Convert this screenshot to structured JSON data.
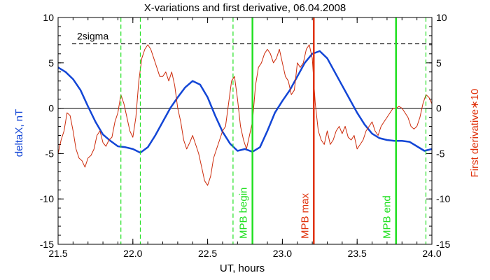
{
  "chart_data": {
    "type": "line",
    "title": "X-variations and first derivative, 06.04.2008",
    "xlabel": "UT, hours",
    "ylabel_left": "deltaX, nT",
    "ylabel_right": "First derivative∗10",
    "xlim": [
      21.5,
      24.0
    ],
    "ylim": [
      -15,
      10
    ],
    "x_ticks": [
      "21.5",
      "22.0",
      "22.5",
      "23.0",
      "23.5",
      "24.0"
    ],
    "y_ticks": [
      "10",
      "5",
      "0",
      "-5",
      "-10",
      "-15"
    ],
    "sigma_label": "2sigma",
    "sigma_level": 7.1,
    "colors": {
      "deltaX": "#1346d6",
      "derivative": "#cc2a0a",
      "green": "#22e022",
      "red": "#e0320c"
    },
    "series": [
      {
        "name": "deltaX",
        "axis": "left",
        "x": [
          21.5,
          21.55,
          21.6,
          21.65,
          21.7,
          21.75,
          21.8,
          21.85,
          21.9,
          21.95,
          22.0,
          22.05,
          22.1,
          22.15,
          22.2,
          22.25,
          22.3,
          22.35,
          22.4,
          22.45,
          22.5,
          22.55,
          22.6,
          22.65,
          22.7,
          22.75,
          22.8,
          22.85,
          22.9,
          22.95,
          23.0,
          23.05,
          23.1,
          23.15,
          23.2,
          23.25,
          23.3,
          23.35,
          23.4,
          23.45,
          23.5,
          23.55,
          23.6,
          23.65,
          23.7,
          23.75,
          23.8,
          23.85,
          23.9,
          23.95,
          24.0
        ],
        "y": [
          4.5,
          4.0,
          3.2,
          2.0,
          0.2,
          -1.5,
          -2.9,
          -3.6,
          -4.2,
          -4.3,
          -4.5,
          -4.9,
          -4.3,
          -3.0,
          -1.5,
          0.0,
          1.2,
          2.3,
          3.0,
          2.6,
          1.2,
          -0.8,
          -2.6,
          -3.9,
          -4.7,
          -4.5,
          -4.8,
          -4.3,
          -2.5,
          -0.5,
          0.8,
          2.0,
          3.5,
          5.0,
          6.0,
          6.3,
          5.5,
          4.0,
          2.5,
          1.0,
          -0.5,
          -1.8,
          -2.8,
          -3.3,
          -3.5,
          -3.6,
          -3.6,
          -3.7,
          -4.2,
          -4.7,
          -4.5
        ]
      },
      {
        "name": "First derivative∗10",
        "axis": "right",
        "x": [
          21.5,
          21.52,
          21.54,
          21.56,
          21.58,
          21.6,
          21.62,
          21.64,
          21.66,
          21.68,
          21.7,
          21.72,
          21.74,
          21.76,
          21.78,
          21.8,
          21.82,
          21.84,
          21.86,
          21.88,
          21.9,
          21.92,
          21.94,
          21.96,
          21.98,
          22.0,
          22.02,
          22.04,
          22.06,
          22.08,
          22.1,
          22.12,
          22.14,
          22.16,
          22.18,
          22.2,
          22.22,
          22.24,
          22.26,
          22.28,
          22.3,
          22.32,
          22.34,
          22.36,
          22.38,
          22.4,
          22.42,
          22.44,
          22.46,
          22.48,
          22.5,
          22.52,
          22.54,
          22.56,
          22.58,
          22.6,
          22.62,
          22.64,
          22.66,
          22.68,
          22.7,
          22.72,
          22.74,
          22.76,
          22.78,
          22.8,
          22.82,
          22.84,
          22.86,
          22.88,
          22.9,
          22.92,
          22.94,
          22.96,
          22.98,
          23.0,
          23.02,
          23.04,
          23.06,
          23.08,
          23.1,
          23.12,
          23.14,
          23.16,
          23.18,
          23.2,
          23.22,
          23.24,
          23.26,
          23.28,
          23.3,
          23.32,
          23.34,
          23.36,
          23.38,
          23.4,
          23.42,
          23.44,
          23.46,
          23.48,
          23.5,
          23.52,
          23.54,
          23.56,
          23.58,
          23.6,
          23.62,
          23.64,
          23.66,
          23.68,
          23.7,
          23.72,
          23.74,
          23.76,
          23.78,
          23.8,
          23.82,
          23.84,
          23.86,
          23.88,
          23.9,
          23.92,
          23.94,
          23.96,
          23.98,
          24.0
        ],
        "y": [
          -5.0,
          -3.5,
          -2.5,
          -0.5,
          -0.8,
          -2.5,
          -4.5,
          -5.5,
          -5.8,
          -6.5,
          -5.5,
          -5.2,
          -4.5,
          -3.0,
          -2.5,
          -3.8,
          -4.2,
          -3.5,
          -3.2,
          -1.5,
          -0.5,
          1.5,
          0.5,
          -1.0,
          -2.5,
          -3.2,
          -1.0,
          3.0,
          5.5,
          6.5,
          7.0,
          6.5,
          5.5,
          4.5,
          3.5,
          3.5,
          4.0,
          3.0,
          4.0,
          2.5,
          0.0,
          -1.5,
          -3.5,
          -4.5,
          -3.8,
          -3.0,
          -4.0,
          -5.0,
          -6.5,
          -8.0,
          -8.5,
          -7.5,
          -5.5,
          -4.5,
          -3.5,
          -2.5,
          -2.0,
          0.5,
          3.0,
          3.5,
          1.0,
          -2.0,
          -3.5,
          -4.5,
          -3.0,
          -1.5,
          2.5,
          4.5,
          5.0,
          6.0,
          6.5,
          6.0,
          5.0,
          5.5,
          6.5,
          5.0,
          3.5,
          3.0,
          1.5,
          2.0,
          5.0,
          4.5,
          5.0,
          6.5,
          7.0,
          5.5,
          0.5,
          -2.5,
          -3.5,
          -4.0,
          -2.5,
          -4.0,
          -3.5,
          -2.5,
          -2.0,
          -2.8,
          -2.0,
          -3.2,
          -3.5,
          -3.0,
          -4.5,
          -4.0,
          -3.5,
          -2.5,
          -2.0,
          -1.5,
          -2.5,
          -3.0,
          -2.0,
          -1.5,
          -1.0,
          -0.5,
          0.0,
          0.0,
          0.2,
          0.0,
          -0.5,
          -1.0,
          -2.0,
          -2.3,
          -2.0,
          -1.0,
          0.5,
          1.5,
          1.2,
          0.5
        ]
      }
    ],
    "markers": [
      {
        "x": 21.92,
        "style": "dashed",
        "color": "green",
        "label": ""
      },
      {
        "x": 22.05,
        "style": "dashed",
        "color": "green",
        "label": ""
      },
      {
        "x": 22.67,
        "style": "dashed",
        "color": "green",
        "label": ""
      },
      {
        "x": 22.8,
        "style": "solid",
        "color": "green",
        "label": "MPB begin"
      },
      {
        "x": 23.21,
        "style": "solid",
        "color": "red",
        "label": "MPB max"
      },
      {
        "x": 23.76,
        "style": "solid",
        "color": "green",
        "label": "MPB end"
      },
      {
        "x": 23.96,
        "style": "dashed",
        "color": "green",
        "label": ""
      }
    ],
    "grid": false,
    "legend": "none"
  }
}
